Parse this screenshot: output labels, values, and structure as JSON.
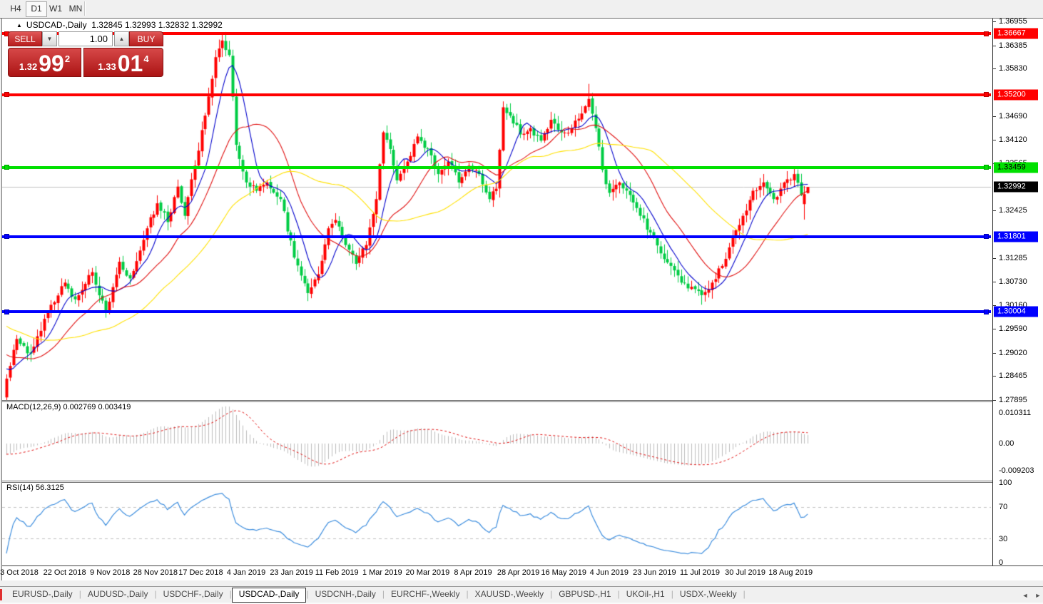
{
  "toolbar": {
    "timeframes": [
      {
        "label": "H4",
        "active": false
      },
      {
        "label": "D1",
        "active": true
      },
      {
        "label": "W1",
        "active": false
      },
      {
        "label": "MN",
        "active": false
      }
    ]
  },
  "chart": {
    "collapse_icon": "▲",
    "symbol": "USDCAD-,Daily",
    "ohlc_text": "1.32845 1.32993 1.32832 1.32992",
    "current_price": {
      "label": "1.32992",
      "price": 1.32992,
      "badge_bg": "#000000",
      "badge_text": "#ffffff",
      "line_color": "#c0c0c0"
    }
  },
  "one_click": {
    "sell_label": "SELL",
    "buy_label": "BUY",
    "volume": "1.00",
    "spin_down_icon": "▼",
    "spin_up_icon": "▲",
    "sell_price": {
      "small": "1.32",
      "big": "99",
      "sup": "2"
    },
    "buy_price": {
      "small": "1.33",
      "big": "01",
      "sup": "4"
    }
  },
  "levels": [
    {
      "label": "1.36667",
      "price": 1.36667,
      "color": "#ff0000",
      "end_color": "#b80000",
      "text_color": "#ffffff",
      "thickness": 4
    },
    {
      "label": "1.35200",
      "price": 1.352,
      "color": "#ff0000",
      "end_color": "#b80000",
      "text_color": "#ffffff",
      "thickness": 4
    },
    {
      "label": "1.33459",
      "price": 1.33459,
      "color": "#00e000",
      "end_color": "#00a000",
      "text_color": "#000000",
      "thickness": 4
    },
    {
      "label": "1.31801",
      "price": 1.31801,
      "color": "#0000ff",
      "end_color": "#0000b0",
      "text_color": "#ffffff",
      "thickness": 4
    },
    {
      "label": "1.30004",
      "price": 1.30004,
      "color": "#0000ff",
      "end_color": "#0000b0",
      "text_color": "#ffffff",
      "thickness": 4
    }
  ],
  "axis_ticks": [
    "1.36955",
    "1.36385",
    "1.35830",
    "1.34690",
    "1.34120",
    "1.33565",
    "1.32425",
    "1.31285",
    "1.30730",
    "1.30160",
    "1.29590",
    "1.29020",
    "1.28465",
    "1.27895"
  ],
  "macd": {
    "label": "MACD(12,26,9)",
    "value_main": "0.002769",
    "value_signal": "0.003419",
    "axis": [
      "0.010311",
      "0.00",
      "-0.009203"
    ],
    "histogram_color": "#bdbdbd",
    "signal_color": "#e01010"
  },
  "rsi": {
    "label": "RSI(14)",
    "value": "56.3125",
    "axis": [
      "100",
      "70",
      "30",
      "0"
    ],
    "line_color": "#3e8ede",
    "level_color": "#c0c0c0"
  },
  "dates": [
    "3 Oct 2018",
    "22 Oct 2018",
    "9 Nov 2018",
    "28 Nov 2018",
    "17 Dec 2018",
    "4 Jan 2019",
    "23 Jan 2019",
    "11 Feb 2019",
    "1 Mar 2019",
    "20 Mar 2019",
    "8 Apr 2019",
    "28 Apr 2019",
    "16 May 2019",
    "4 Jun 2019",
    "23 Jun 2019",
    "11 Jul 2019",
    "30 Jul 2019",
    "18 Aug 2019"
  ],
  "tabs": {
    "items": [
      {
        "label": "EURUSD-,Daily",
        "active": false
      },
      {
        "label": "AUDUSD-,Daily",
        "active": false
      },
      {
        "label": "USDCHF-,Daily",
        "active": false
      },
      {
        "label": "USDCAD-,Daily",
        "active": true
      },
      {
        "label": "USDCNH-,Daily",
        "active": false
      },
      {
        "label": "EURCHF-,Weekly",
        "active": false
      },
      {
        "label": "XAUUSD-,Weekly",
        "active": false
      },
      {
        "label": "GBPUSD-,H1",
        "active": false
      },
      {
        "label": "UKOil-,H1",
        "active": false
      },
      {
        "label": "USDX-,Weekly",
        "active": false
      }
    ],
    "scroll_left_icon": "◄",
    "scroll_right_icon": "►"
  },
  "chart_data": {
    "type": "candlestick",
    "symbol": "USDCAD",
    "period": "Daily",
    "n_candles": 235,
    "up_color": "#ff0000",
    "down_color": "#00cc44",
    "last_candle": {
      "open": 1.32845,
      "high": 1.32993,
      "low": 1.32832,
      "close": 1.32992
    },
    "close_anchors": [
      [
        0,
        1.284
      ],
      [
        3,
        1.2935
      ],
      [
        7,
        1.29
      ],
      [
        12,
        1.3
      ],
      [
        17,
        1.307
      ],
      [
        20,
        1.303
      ],
      [
        25,
        1.3095
      ],
      [
        29,
        1.3
      ],
      [
        33,
        1.312
      ],
      [
        36,
        1.308
      ],
      [
        41,
        1.32
      ],
      [
        44,
        1.326
      ],
      [
        47,
        1.3215
      ],
      [
        50,
        1.33
      ],
      [
        52,
        1.323
      ],
      [
        55,
        1.335
      ],
      [
        58,
        1.347
      ],
      [
        61,
        1.361
      ],
      [
        63,
        1.365
      ],
      [
        65,
        1.3615
      ],
      [
        67,
        1.34
      ],
      [
        70,
        1.331
      ],
      [
        73,
        1.329
      ],
      [
        76,
        1.331
      ],
      [
        80,
        1.327
      ],
      [
        84,
        1.313
      ],
      [
        88,
        1.3045
      ],
      [
        91,
        1.309
      ],
      [
        94,
        1.32
      ],
      [
        96,
        1.322
      ],
      [
        99,
        1.316
      ],
      [
        102,
        1.3115
      ],
      [
        105,
        1.316
      ],
      [
        108,
        1.327
      ],
      [
        110,
        1.343
      ],
      [
        112,
        1.339
      ],
      [
        114,
        1.3315
      ],
      [
        117,
        1.336
      ],
      [
        120,
        1.342
      ],
      [
        123,
        1.339
      ],
      [
        126,
        1.333
      ],
      [
        129,
        1.336
      ],
      [
        132,
        1.331
      ],
      [
        135,
        1.335
      ],
      [
        138,
        1.333
      ],
      [
        141,
        1.327
      ],
      [
        143,
        1.3295
      ],
      [
        145,
        1.349
      ],
      [
        147,
        1.347
      ],
      [
        150,
        1.3425
      ],
      [
        153,
        1.344
      ],
      [
        156,
        1.341
      ],
      [
        159,
        1.346
      ],
      [
        162,
        1.343
      ],
      [
        165,
        1.344
      ],
      [
        168,
        1.3475
      ],
      [
        170,
        1.351
      ],
      [
        172,
        1.344
      ],
      [
        174,
        1.334
      ],
      [
        176,
        1.3285
      ],
      [
        179,
        1.331
      ],
      [
        182,
        1.328
      ],
      [
        185,
        1.323
      ],
      [
        188,
        1.319
      ],
      [
        191,
        1.314
      ],
      [
        194,
        1.311
      ],
      [
        197,
        1.307
      ],
      [
        200,
        1.306
      ],
      [
        203,
        1.304
      ],
      [
        206,
        1.307
      ],
      [
        209,
        1.311
      ],
      [
        212,
        1.318
      ],
      [
        215,
        1.323
      ],
      [
        218,
        1.329
      ],
      [
        221,
        1.331
      ],
      [
        224,
        1.327
      ],
      [
        227,
        1.331
      ],
      [
        230,
        1.333
      ],
      [
        232,
        1.328
      ],
      [
        234,
        1.32992
      ]
    ],
    "extremes": {
      "peak_high": 1.3666,
      "may_spike_high": 1.3546,
      "july_low": 1.3017
    },
    "moving_averages": [
      {
        "period": 8,
        "color": "#0000cc"
      },
      {
        "period": 20,
        "color": "#e01010"
      },
      {
        "period": 45,
        "color": "#ffe100"
      }
    ]
  }
}
